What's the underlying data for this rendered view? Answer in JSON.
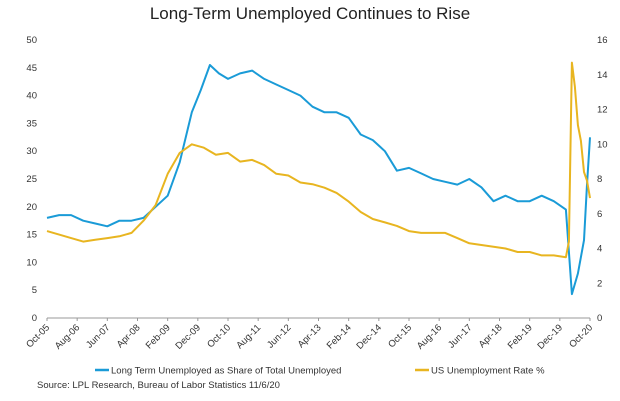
{
  "chart_data": {
    "type": "line",
    "title": "Long-Term Unemployed Continues to Rise",
    "source": "Source: LPL Research, Bureau of Labor Statistics 11/6/20",
    "x_tick_labels": [
      "Oct-05",
      "Aug-06",
      "Jun-07",
      "Apr-08",
      "Feb-09",
      "Dec-09",
      "Oct-10",
      "Aug-11",
      "Jun-12",
      "Apr-13",
      "Feb-14",
      "Dec-14",
      "Oct-15",
      "Aug-16",
      "Jun-17",
      "Apr-18",
      "Feb-19",
      "Dec-19",
      "Oct-20"
    ],
    "xlim": [
      "2005-10",
      "2020-10"
    ],
    "y_left": {
      "ylim": [
        0,
        50
      ],
      "ticks": [
        "0",
        "5",
        "10",
        "15",
        "20",
        "25",
        "30",
        "35",
        "40",
        "45",
        "50"
      ]
    },
    "y_right": {
      "ylim": [
        0,
        16
      ],
      "ticks": [
        "0",
        "2",
        "4",
        "6",
        "8",
        "10",
        "12",
        "14",
        "16"
      ]
    },
    "grid": false,
    "legend": "bottom",
    "series": [
      {
        "name": "Long Term Unemployed as Share of Total Unemployed",
        "axis": "left",
        "color": "#1a9bd7",
        "x": [
          "2005-10",
          "2006-02",
          "2006-06",
          "2006-10",
          "2007-02",
          "2007-06",
          "2007-10",
          "2008-02",
          "2008-06",
          "2008-10",
          "2009-02",
          "2009-06",
          "2009-10",
          "2010-01",
          "2010-04",
          "2010-07",
          "2010-10",
          "2011-02",
          "2011-06",
          "2011-10",
          "2012-02",
          "2012-06",
          "2012-10",
          "2013-02",
          "2013-06",
          "2013-10",
          "2014-02",
          "2014-06",
          "2014-10",
          "2015-02",
          "2015-06",
          "2015-10",
          "2016-02",
          "2016-06",
          "2016-10",
          "2017-02",
          "2017-06",
          "2017-10",
          "2018-02",
          "2018-06",
          "2018-10",
          "2019-02",
          "2019-06",
          "2019-10",
          "2020-02",
          "2020-04",
          "2020-06",
          "2020-08",
          "2020-09",
          "2020-10"
        ],
        "values": [
          18,
          18.5,
          18.5,
          17.5,
          17,
          16.5,
          17.5,
          17.5,
          18,
          20,
          22,
          28,
          37,
          41,
          45.5,
          44,
          43,
          44,
          44.5,
          43,
          42,
          41,
          40,
          38,
          37,
          37,
          36,
          33,
          32,
          30,
          26.5,
          27,
          26,
          25,
          24.5,
          24,
          25,
          23.5,
          21,
          22,
          21,
          21,
          22,
          21,
          19.5,
          4.3,
          8,
          14,
          24,
          32.5
        ]
      },
      {
        "name": "US Unemployment Rate %",
        "axis": "right",
        "color": "#e8b520",
        "x": [
          "2005-10",
          "2006-02",
          "2006-06",
          "2006-10",
          "2007-02",
          "2007-06",
          "2007-10",
          "2008-02",
          "2008-06",
          "2008-10",
          "2009-02",
          "2009-06",
          "2009-10",
          "2010-02",
          "2010-06",
          "2010-10",
          "2011-02",
          "2011-06",
          "2011-10",
          "2012-02",
          "2012-06",
          "2012-10",
          "2013-02",
          "2013-06",
          "2013-10",
          "2014-02",
          "2014-06",
          "2014-10",
          "2015-02",
          "2015-06",
          "2015-10",
          "2016-02",
          "2016-06",
          "2016-10",
          "2017-02",
          "2017-06",
          "2017-10",
          "2018-02",
          "2018-06",
          "2018-10",
          "2019-02",
          "2019-06",
          "2019-10",
          "2020-02",
          "2020-03",
          "2020-04",
          "2020-05",
          "2020-06",
          "2020-07",
          "2020-08",
          "2020-09",
          "2020-10"
        ],
        "values": [
          5.0,
          4.8,
          4.6,
          4.4,
          4.5,
          4.6,
          4.7,
          4.9,
          5.6,
          6.5,
          8.3,
          9.5,
          10.0,
          9.8,
          9.4,
          9.5,
          9.0,
          9.1,
          8.8,
          8.3,
          8.2,
          7.8,
          7.7,
          7.5,
          7.2,
          6.7,
          6.1,
          5.7,
          5.5,
          5.3,
          5.0,
          4.9,
          4.9,
          4.9,
          4.6,
          4.3,
          4.2,
          4.1,
          4.0,
          3.8,
          3.8,
          3.6,
          3.6,
          3.5,
          4.4,
          14.7,
          13.3,
          11.1,
          10.2,
          8.4,
          7.9,
          6.9
        ]
      }
    ]
  }
}
